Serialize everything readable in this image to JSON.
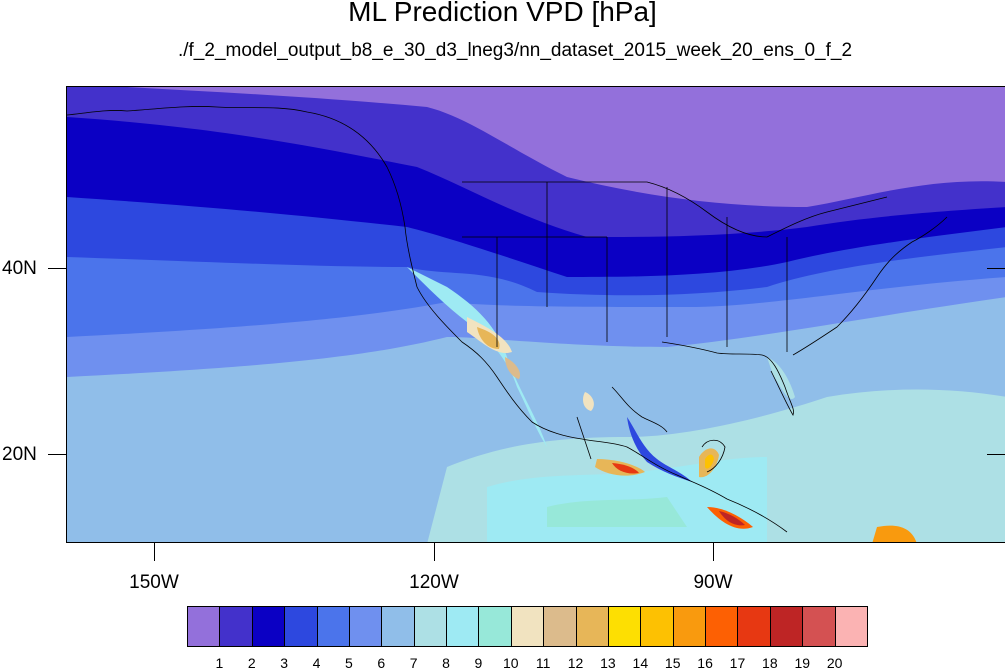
{
  "title": "ML Prediction VPD [hPa]",
  "subtitle": "./f_2_model_output_b8_e_30_d3_lneg3/nn_dataset_2015_week_20_ens_0_f_2",
  "axes": {
    "lat_labels": [
      "40N",
      "20N"
    ],
    "lon_labels": [
      "150W",
      "120W",
      "90W"
    ]
  },
  "colorbar": {
    "labels": [
      "1",
      "2",
      "3",
      "4",
      "5",
      "6",
      "7",
      "8",
      "9",
      "10",
      "11",
      "12",
      "13",
      "14",
      "15",
      "16",
      "17",
      "18",
      "19",
      "20"
    ],
    "colors": [
      "#9370db",
      "#4331cb",
      "#0b00c4",
      "#2d48df",
      "#4b74eb",
      "#6f90ef",
      "#90bee9",
      "#ade0e5",
      "#9eeaf3",
      "#97e8d9",
      "#f1e3c0",
      "#dcbb8c",
      "#e7b658",
      "#fddf02",
      "#fdc102",
      "#f99a0e",
      "#fd6003",
      "#e73812",
      "#be2525",
      "#d45152",
      "#fbb3b3"
    ]
  }
}
